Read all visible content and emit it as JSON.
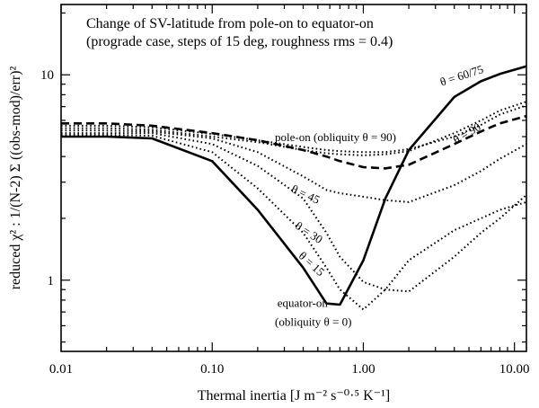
{
  "chart_data": {
    "type": "line",
    "title_lines": [
      "Change of SV-latitude from pole-on to equator-on",
      "(prograde case, steps of 15 deg, roughness rms = 0.4)"
    ],
    "xlabel": "Thermal inertia [J m⁻² s⁻⁰·⁵ K⁻¹]",
    "ylabel": "reduced χ² : 1/(N-2) Σ ((obs-mod)/err)²",
    "xscale": "log",
    "yscale": "log",
    "xlim": [
      0.01,
      12
    ],
    "ylim": [
      0.45,
      22
    ],
    "x_ticks": [
      {
        "value": 0.01,
        "label": "0.01"
      },
      {
        "value": 0.1,
        "label": "0.10"
      },
      {
        "value": 1,
        "label": "1.00"
      },
      {
        "value": 10,
        "label": "10.00"
      }
    ],
    "y_ticks": [
      {
        "value": 1,
        "label": "1"
      },
      {
        "value": 10,
        "label": "10"
      }
    ],
    "x": [
      0.01,
      0.02,
      0.04,
      0.1,
      0.2,
      0.4,
      0.57,
      0.7,
      1.0,
      1.4,
      2.0,
      4.0,
      6.0,
      8.0,
      12.0
    ],
    "series": [
      {
        "name": "equator-on",
        "style": "solid",
        "values": [
          5.0,
          5.0,
          4.9,
          3.8,
          2.2,
          1.15,
          0.77,
          0.76,
          1.25,
          2.5,
          4.3,
          7.8,
          9.3,
          10.1,
          11.0
        ]
      },
      {
        "name": "theta-15",
        "style": "dotted",
        "values": [
          5.1,
          5.1,
          5.05,
          4.2,
          2.8,
          1.7,
          1.15,
          0.9,
          0.72,
          0.9,
          1.25,
          1.75,
          2.0,
          2.2,
          2.4
        ]
      },
      {
        "name": "theta-30",
        "style": "dotted",
        "values": [
          5.2,
          5.2,
          5.2,
          4.6,
          3.6,
          2.5,
          1.7,
          1.3,
          0.98,
          0.9,
          0.88,
          1.3,
          1.7,
          2.0,
          2.6
        ]
      },
      {
        "name": "theta-45",
        "style": "dotted",
        "values": [
          5.35,
          5.35,
          5.3,
          4.9,
          4.2,
          3.2,
          2.75,
          2.65,
          2.55,
          2.45,
          2.4,
          2.9,
          3.4,
          3.9,
          4.6
        ]
      },
      {
        "name": "theta-60",
        "style": "dotted",
        "values": [
          5.5,
          5.5,
          5.4,
          5.0,
          4.7,
          4.3,
          4.15,
          4.1,
          4.05,
          4.1,
          4.25,
          5.2,
          6.0,
          6.7,
          7.4
        ]
      },
      {
        "name": "theta-75",
        "style": "dotted",
        "values": [
          5.65,
          5.65,
          5.55,
          5.15,
          4.8,
          4.45,
          4.3,
          4.25,
          4.2,
          4.2,
          4.35,
          5.0,
          5.7,
          6.4,
          7.1
        ]
      },
      {
        "name": "pole-on",
        "style": "dashed",
        "values": [
          5.8,
          5.8,
          5.65,
          5.2,
          4.8,
          4.3,
          4.0,
          3.8,
          3.55,
          3.5,
          3.65,
          4.6,
          5.3,
          5.8,
          6.3
        ]
      }
    ],
    "annotations": [
      {
        "text": "pole-on (obliquity θ = 90)",
        "x": 0.26,
        "y": 4.75,
        "rotate": 0
      },
      {
        "text": "θ = 60/75",
        "x": 3.3,
        "y": 8.8,
        "rotate": -18
      },
      {
        "text": "θ = 90",
        "x": 4.1,
        "y": 4.6,
        "rotate": -30
      },
      {
        "text": "θ = 45",
        "x": 0.33,
        "y": 2.7,
        "rotate": 25
      },
      {
        "text": "θ = 30",
        "x": 0.35,
        "y": 1.8,
        "rotate": 33
      },
      {
        "text": "θ = 15",
        "x": 0.37,
        "y": 1.3,
        "rotate": 42
      },
      {
        "text": "equator-on",
        "x": 0.27,
        "y": 0.74,
        "rotate": 0
      },
      {
        "text": "(obliquity θ = 0)",
        "x": 0.26,
        "y": 0.6,
        "rotate": 0
      }
    ]
  }
}
